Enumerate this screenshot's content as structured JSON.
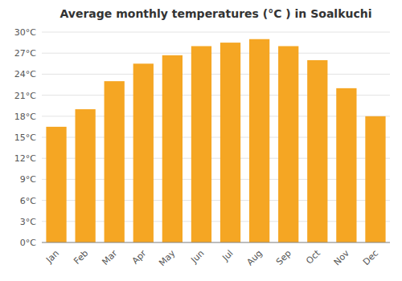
{
  "chart_data": {
    "type": "bar",
    "title": "Average monthly temperatures (°C ) in Soalkuchi",
    "categories": [
      "Jan",
      "Feb",
      "Mar",
      "Apr",
      "May",
      "Jun",
      "Jul",
      "Aug",
      "Sep",
      "Oct",
      "Nov",
      "Dec"
    ],
    "values": [
      16.5,
      19.0,
      23.0,
      25.5,
      26.7,
      28.0,
      28.5,
      29.0,
      28.0,
      26.0,
      22.0,
      18.0
    ],
    "color": "#F5A623",
    "ylim": [
      0,
      30
    ],
    "yticks": [
      {
        "value": 0,
        "label": "0°C"
      },
      {
        "value": 3,
        "label": "3°C"
      },
      {
        "value": 6,
        "label": "6°C"
      },
      {
        "value": 9,
        "label": "9°C"
      },
      {
        "value": 12,
        "label": "12°C"
      },
      {
        "value": 15,
        "label": "15°C"
      },
      {
        "value": 18,
        "label": "18°C"
      },
      {
        "value": 21,
        "label": "21°C"
      },
      {
        "value": 24,
        "label": "24°C"
      },
      {
        "value": 27,
        "label": "27°C"
      },
      {
        "value": 30,
        "label": "30°C"
      }
    ],
    "grid": true
  }
}
